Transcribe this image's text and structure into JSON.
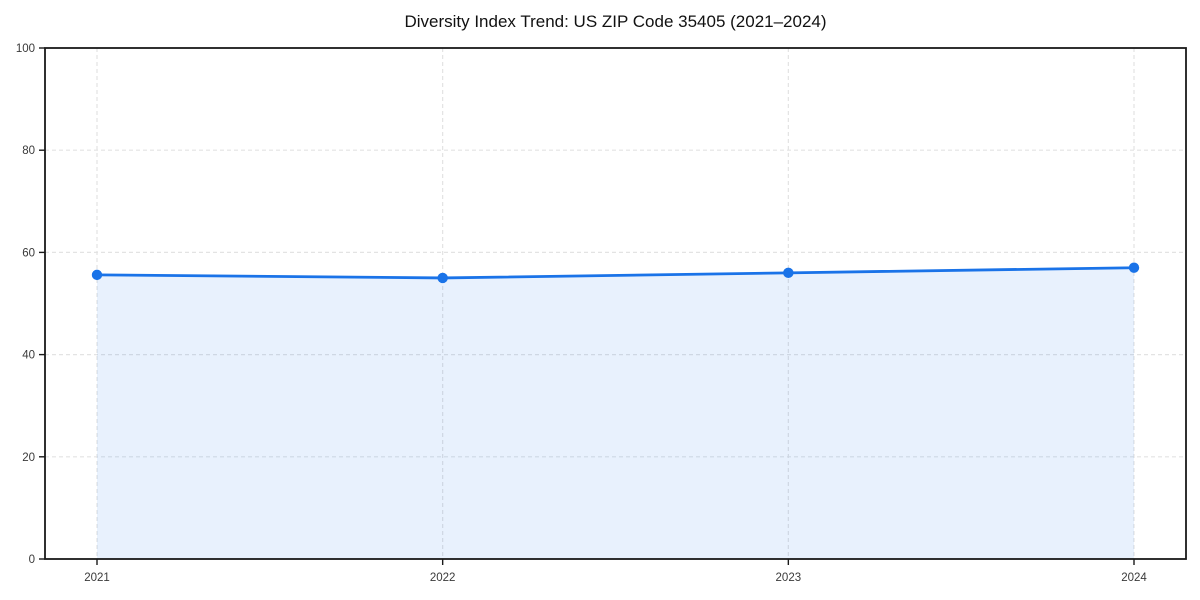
{
  "title": "Diversity Index Trend: US ZIP Code 35405 (2021–2024)",
  "chart_data": {
    "type": "area",
    "title": "Diversity Index Trend: US ZIP Code 35405 (2021–2024)",
    "categories": [
      "2021",
      "2022",
      "2023",
      "2024"
    ],
    "series": [
      {
        "name": "Diversity Index",
        "values": [
          55.6,
          55.0,
          56.0,
          57.0
        ]
      }
    ],
    "xlabel": "",
    "ylabel": "",
    "ylim": [
      0,
      100
    ],
    "yticks": [
      0,
      20,
      40,
      60,
      80,
      100
    ],
    "grid": "dashed, both directions",
    "legend": "none",
    "colors": {
      "line": "#1a73e8",
      "marker": "#1a73e8",
      "area_fill": "rgba(26,115,232,0.10)",
      "grid": "#e3e3e3",
      "spine": "#1a1a1a",
      "tick_label": "#3a3a3a",
      "title": "#111111",
      "background": "#ffffff"
    }
  }
}
